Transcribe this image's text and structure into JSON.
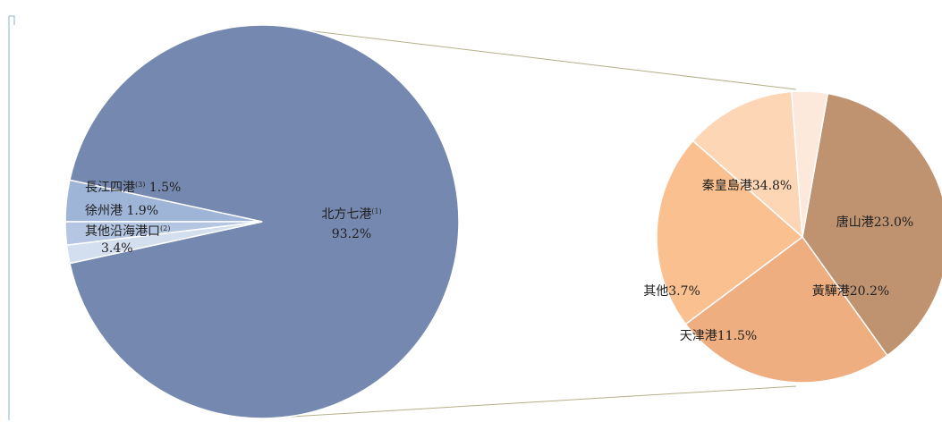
{
  "chart_data": [
    {
      "type": "pie",
      "slices": [
        {
          "name": "北方七港",
          "note": "(1)",
          "value": 93.2,
          "label": "93.2%",
          "color": "#7589b0"
        },
        {
          "name": "其他沿海港口",
          "note": "(2)",
          "value": 3.4,
          "label": "3.4%",
          "color": "#9fb5d8"
        },
        {
          "name": "徐州港",
          "note": "",
          "value": 1.9,
          "label": "1.9%",
          "color": "#b4c6e2"
        },
        {
          "name": "長江四港",
          "note": "(3)",
          "value": 1.5,
          "label": "1.5%",
          "color": "#d3deef"
        }
      ]
    },
    {
      "type": "pie",
      "slices": [
        {
          "name": "秦皇島港",
          "value": 34.8,
          "label": "34.8%",
          "color": "#bf9270"
        },
        {
          "name": "唐山港",
          "value": 23.0,
          "label": "23.0%",
          "color": "#efae80"
        },
        {
          "name": "黃驊港",
          "value": 20.2,
          "label": "20.2%",
          "color": "#fac08f"
        },
        {
          "name": "天津港",
          "value": 11.5,
          "label": "11.5%",
          "color": "#fdd6b6"
        },
        {
          "name": "其他",
          "value": 3.7,
          "label": "3.7%",
          "color": "#fde9db"
        }
      ]
    }
  ]
}
